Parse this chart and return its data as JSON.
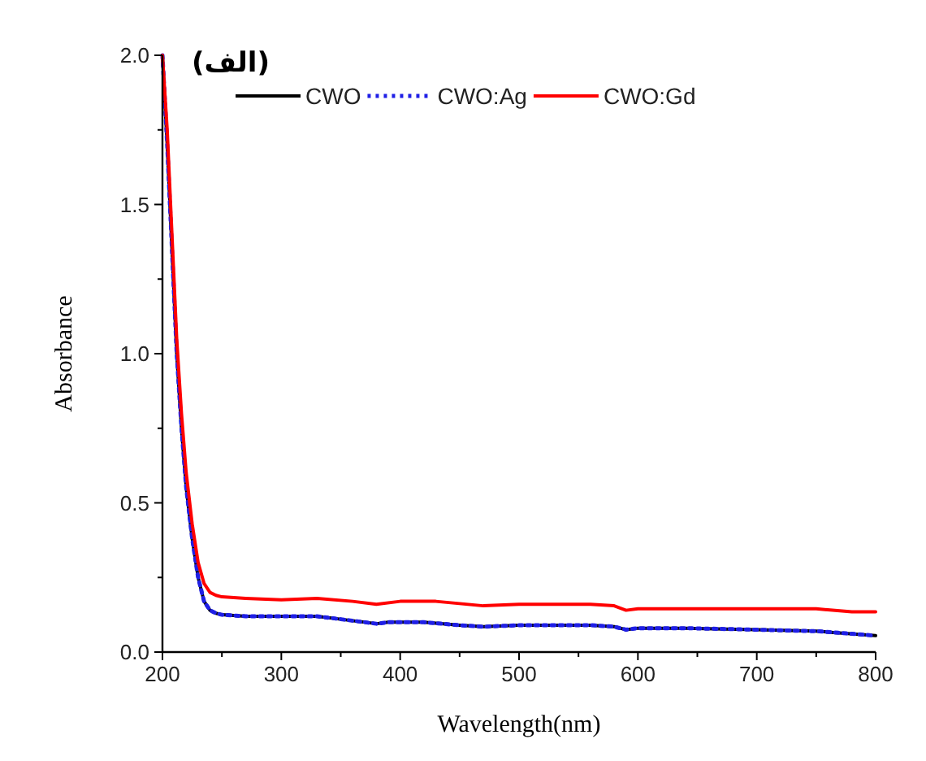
{
  "chart_data": {
    "type": "line",
    "title": "(الف)",
    "xlabel": "Wavelength(nm)",
    "ylabel": "Absorbance",
    "xlim": [
      200,
      800
    ],
    "ylim": [
      0,
      2.0
    ],
    "xticks": [
      200,
      {
        "value": 250,
        "label": null
      },
      300,
      {
        "value": 350,
        "label": null
      },
      400,
      {
        "value": 450,
        "label": null
      },
      500,
      {
        "value": 550,
        "label": null
      },
      600,
      {
        "value": 650,
        "label": null
      },
      700,
      {
        "value": 750,
        "label": null
      },
      800
    ],
    "yticks": [
      "0.0",
      {
        "value": 0.25,
        "label": null
      },
      {
        "value": 0.5,
        "label": "0.5"
      },
      {
        "value": 0.75,
        "label": null
      },
      {
        "value": 1.0,
        "label": "1.0"
      },
      {
        "value": 1.25,
        "label": null
      },
      {
        "value": 1.5,
        "label": "1.5"
      },
      {
        "value": 1.75,
        "label": null
      },
      {
        "value": 2.0,
        "label": "2.0"
      }
    ],
    "legend": "top",
    "grid": false,
    "marker": "none",
    "series": [
      {
        "name": "CWO",
        "color": "#000000",
        "line_style": "solid",
        "x": [
          200,
          204,
          208,
          212,
          216,
          220,
          225,
          230,
          235,
          240,
          245,
          250,
          270,
          300,
          330,
          350,
          380,
          390,
          420,
          450,
          470,
          500,
          560,
          580,
          590,
          600,
          640,
          700,
          750,
          800
        ],
        "values": [
          2.0,
          1.7,
          1.35,
          1.0,
          0.75,
          0.55,
          0.38,
          0.25,
          0.17,
          0.14,
          0.13,
          0.125,
          0.12,
          0.12,
          0.12,
          0.11,
          0.095,
          0.1,
          0.1,
          0.09,
          0.085,
          0.09,
          0.09,
          0.085,
          0.075,
          0.08,
          0.08,
          0.075,
          0.07,
          0.055
        ]
      },
      {
        "name": "CWO:Ag",
        "color": "#1f1fe6",
        "line_style": "dotted",
        "x": [
          200,
          204,
          208,
          212,
          216,
          220,
          225,
          230,
          235,
          240,
          245,
          250,
          270,
          300,
          330,
          350,
          380,
          390,
          420,
          450,
          470,
          500,
          560,
          580,
          590,
          600,
          640,
          700,
          750,
          800
        ],
        "values": [
          2.0,
          1.7,
          1.35,
          1.0,
          0.75,
          0.55,
          0.38,
          0.25,
          0.17,
          0.14,
          0.13,
          0.125,
          0.12,
          0.12,
          0.12,
          0.11,
          0.095,
          0.1,
          0.1,
          0.09,
          0.085,
          0.09,
          0.09,
          0.085,
          0.075,
          0.08,
          0.08,
          0.075,
          0.07,
          0.055
        ]
      },
      {
        "name": "CWO:Gd",
        "color": "#ff0000",
        "line_style": "solid",
        "x": [
          200,
          204,
          208,
          212,
          216,
          220,
          225,
          230,
          235,
          240,
          245,
          250,
          270,
          300,
          330,
          360,
          380,
          400,
          430,
          470,
          500,
          560,
          580,
          590,
          600,
          650,
          700,
          750,
          780,
          800
        ],
        "values": [
          2.0,
          1.75,
          1.4,
          1.05,
          0.8,
          0.6,
          0.43,
          0.3,
          0.23,
          0.2,
          0.19,
          0.185,
          0.18,
          0.175,
          0.18,
          0.17,
          0.16,
          0.17,
          0.17,
          0.155,
          0.16,
          0.16,
          0.155,
          0.14,
          0.145,
          0.145,
          0.145,
          0.145,
          0.135,
          0.135
        ]
      }
    ]
  }
}
